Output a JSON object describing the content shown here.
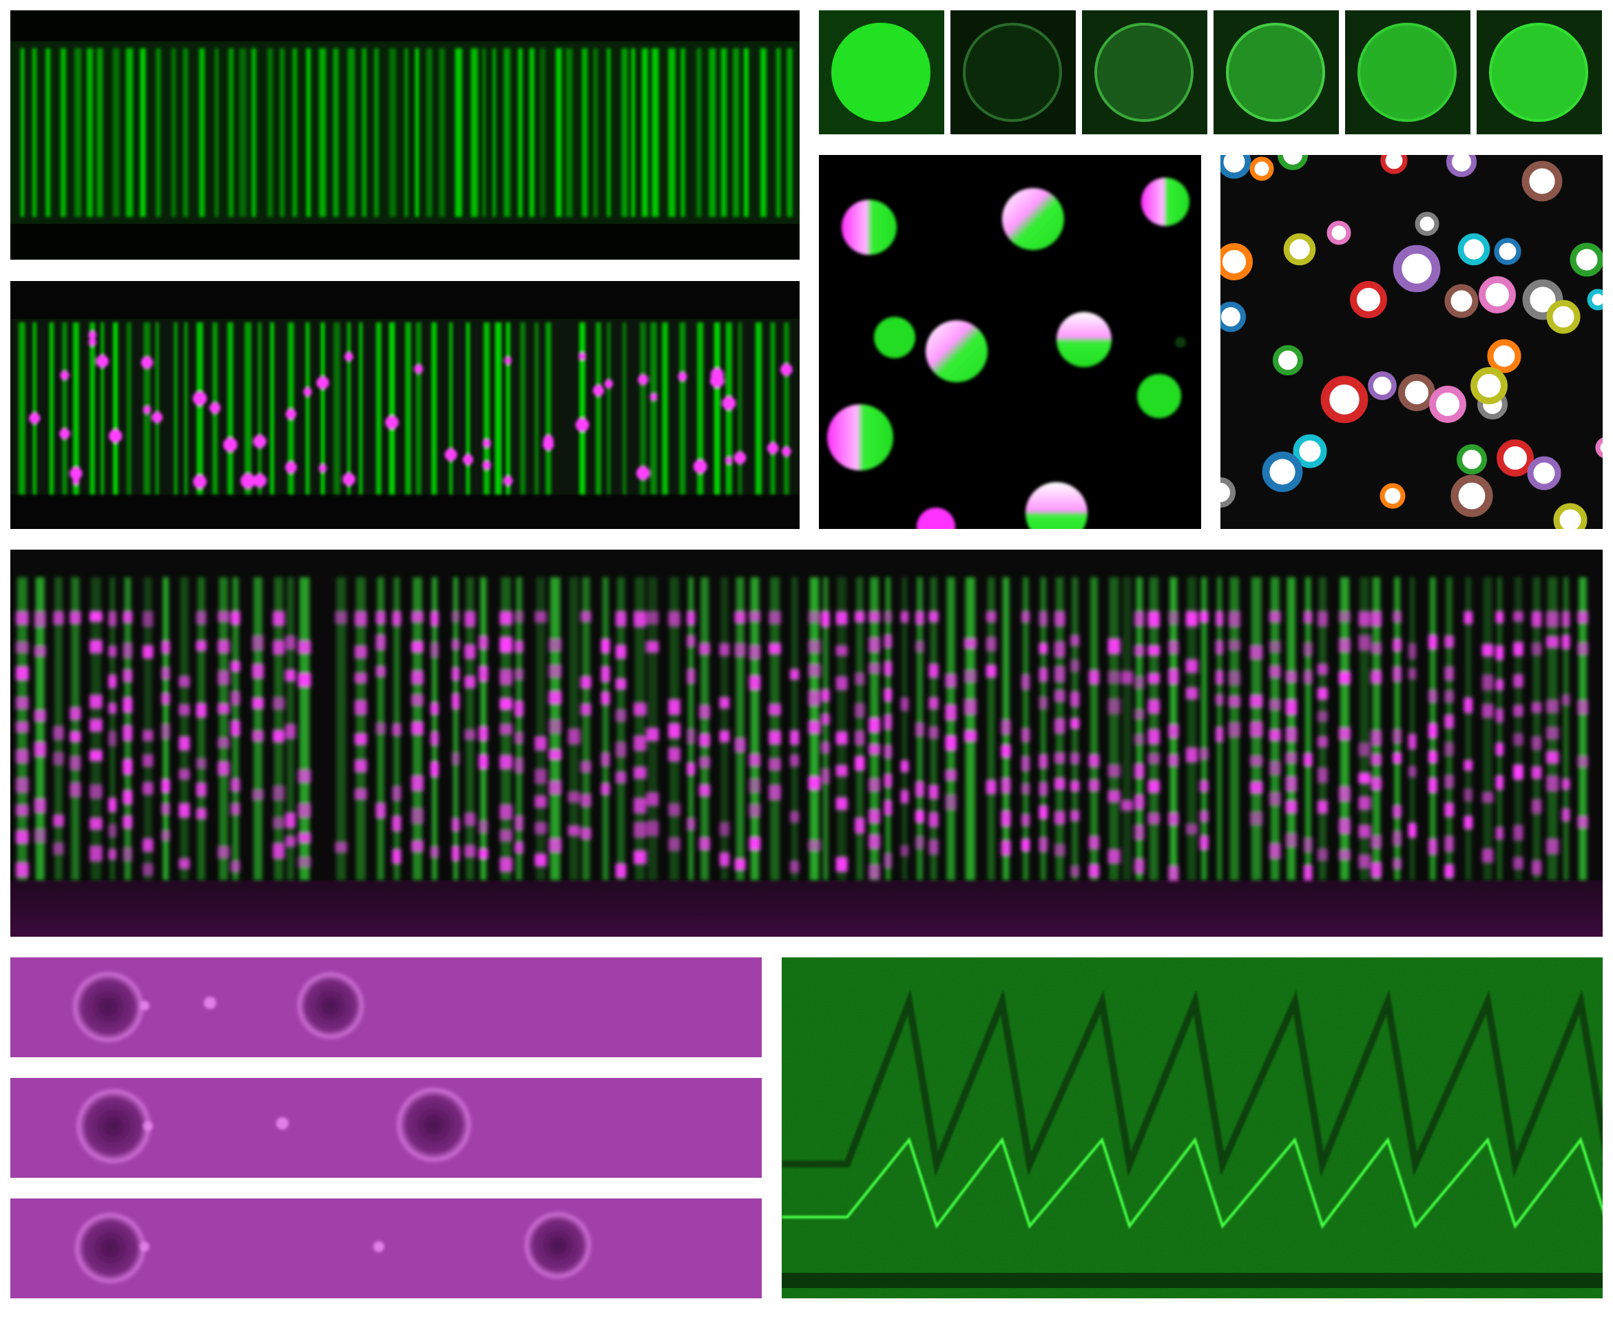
{
  "figure": {
    "panels": [
      {
        "id": "channel-array-green",
        "channel_colors": [
          "#00e000"
        ]
      },
      {
        "id": "droplet-timelapse",
        "frame_count": 6,
        "channel_colors": [
          "#22e022"
        ]
      },
      {
        "id": "channel-array-merge",
        "channel_colors": [
          "#00e000",
          "#ff40ff"
        ]
      },
      {
        "id": "janus-droplets",
        "channel_colors": [
          "#22ee22",
          "#ff30ff",
          "#ffffff"
        ]
      },
      {
        "id": "segmentation-overlay",
        "outline_colors": [
          "#1f77b4",
          "#ff7f0e",
          "#2ca02c",
          "#d62728",
          "#9467bd",
          "#8c564b",
          "#e377c2",
          "#7f7f7f",
          "#bcbd22",
          "#17becf"
        ]
      },
      {
        "id": "channel-array-large-merge",
        "channel_colors": [
          "#30d030",
          "#ff40ff"
        ]
      },
      {
        "id": "magenta-strips",
        "strip_count": 3,
        "channel_colors": [
          "#a040a8"
        ]
      },
      {
        "id": "kymograph-sawtooth",
        "channel_colors": [
          "#1a7a1a",
          "#33ee33"
        ]
      }
    ]
  }
}
